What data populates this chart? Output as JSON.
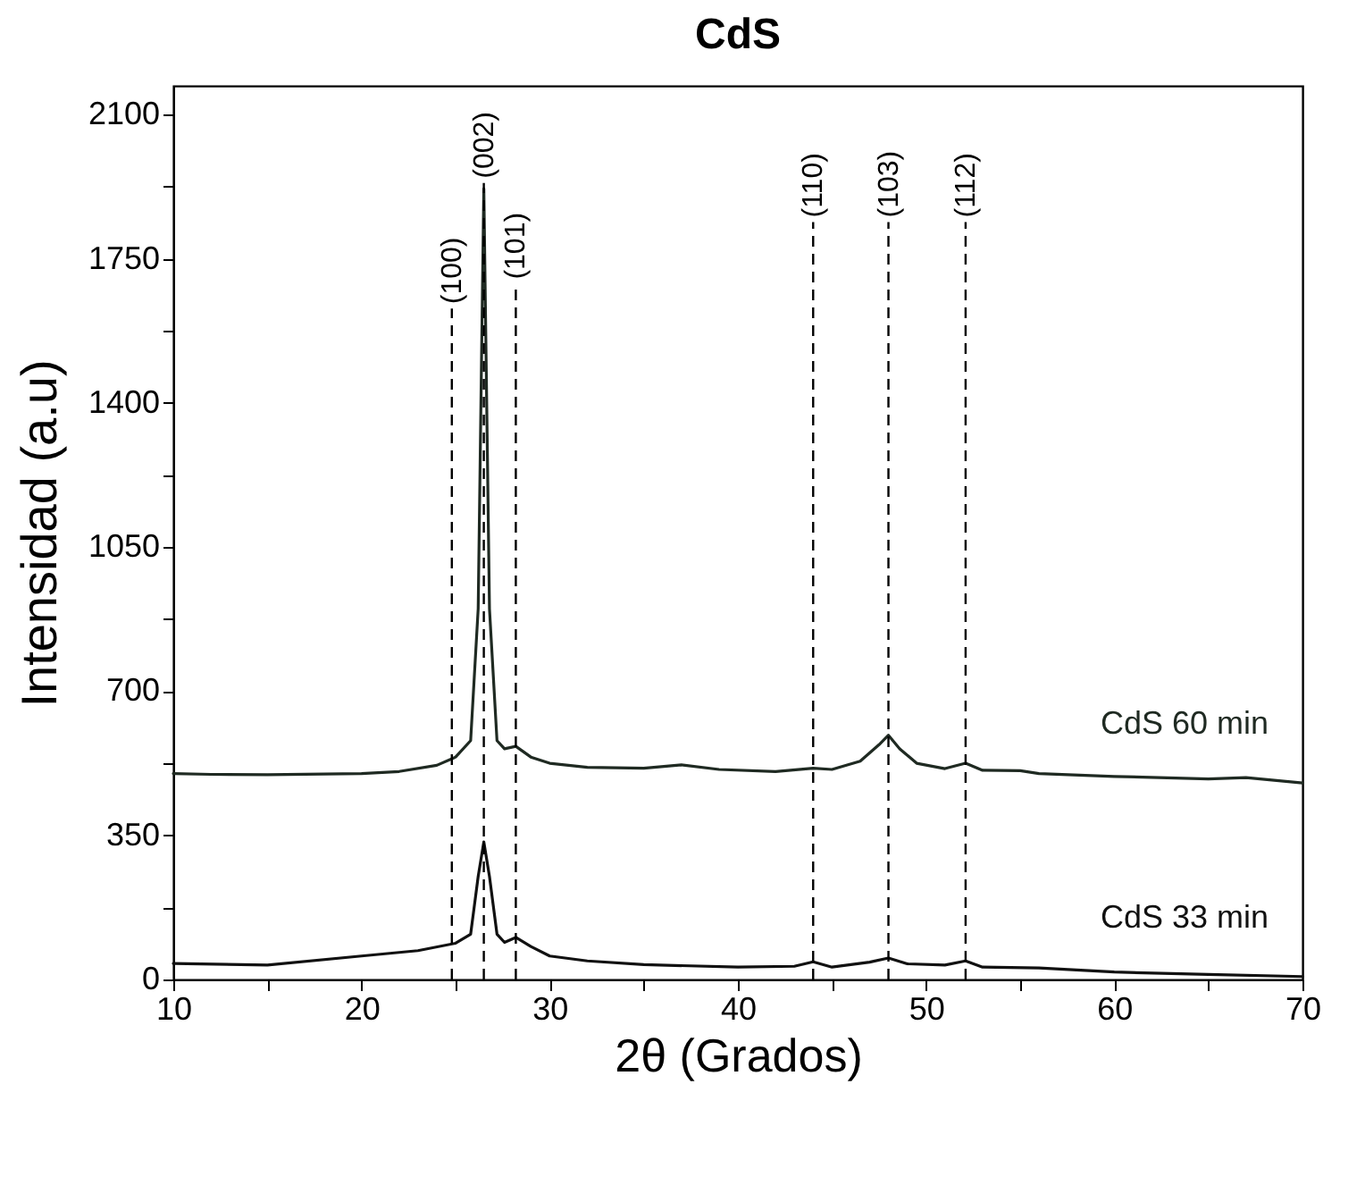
{
  "chart_data": {
    "type": "line",
    "title": "CdS",
    "xlabel": "2θ (Grados)",
    "ylabel": "Intensidad (a.u)",
    "xlim": [
      10,
      70
    ],
    "xticks": [
      10,
      {
        "value": 15,
        "label": null
      },
      20,
      {
        "value": 25,
        "label": null
      },
      30,
      {
        "value": 35,
        "label": null
      },
      40,
      {
        "value": 45,
        "label": null
      },
      50,
      {
        "value": 55,
        "label": null
      },
      60,
      {
        "value": 65,
        "label": null
      },
      70
    ],
    "ylim": [
      0,
      2170
    ],
    "yticks": [
      0,
      {
        "value": 175,
        "label": null
      },
      350,
      {
        "value": 525,
        "label": null
      },
      700,
      {
        "value": 875,
        "label": null
      },
      1050,
      {
        "value": 1225,
        "label": null
      },
      1400,
      {
        "value": 1575,
        "label": null
      },
      1750,
      {
        "value": 1925,
        "label": null
      },
      2100
    ],
    "grid": false,
    "legend": false,
    "marker": "none",
    "line_style": "solid",
    "series": [
      {
        "name": "CdS 60 min",
        "color": "#1f2a22",
        "x": [
          10,
          12,
          15,
          18,
          20,
          22,
          24,
          25,
          25.8,
          26.2,
          26.5,
          26.8,
          27.2,
          27.6,
          28.2,
          29,
          30,
          32,
          35,
          37,
          39,
          42,
          44,
          45,
          46.5,
          47.5,
          48,
          48.6,
          49.5,
          51,
          52.1,
          53,
          55,
          56,
          60,
          65,
          67,
          70
        ],
        "values": [
          500,
          498,
          497,
          499,
          500,
          505,
          520,
          540,
          580,
          900,
          1920,
          900,
          580,
          560,
          566,
          540,
          525,
          515,
          513,
          521,
          510,
          505,
          513,
          510,
          530,
          570,
          593,
          560,
          525,
          512,
          525,
          508,
          507,
          500,
          493,
          487,
          490,
          477
        ]
      },
      {
        "name": "CdS 33 min",
        "color": "#111111",
        "x": [
          10,
          15,
          20,
          23,
          25,
          25.8,
          26.2,
          26.5,
          26.8,
          27.2,
          27.6,
          28.2,
          29,
          30,
          32,
          35,
          40,
          43,
          44,
          45,
          47,
          48,
          49,
          51,
          52.1,
          53,
          56,
          60,
          65,
          70
        ],
        "values": [
          39,
          35,
          57,
          70,
          88,
          110,
          250,
          334,
          250,
          110,
          90,
          102,
          80,
          57,
          45,
          36,
          30,
          32,
          43,
          30,
          42,
          52,
          38,
          35,
          45,
          30,
          28,
          18,
          12,
          7
        ]
      }
    ],
    "ref_lines": [
      {
        "axis": "x",
        "value": 24.8,
        "line_style": "dashed"
      },
      {
        "axis": "x",
        "value": 26.5,
        "line_style": "dashed"
      },
      {
        "axis": "x",
        "value": 28.2,
        "line_style": "dashed"
      },
      {
        "axis": "x",
        "value": 44.0,
        "line_style": "dashed"
      },
      {
        "axis": "x",
        "value": 48.0,
        "line_style": "dashed"
      },
      {
        "axis": "x",
        "value": 52.1,
        "line_style": "dashed"
      }
    ],
    "annotations": [
      {
        "text": "(100)",
        "x": 24.8,
        "y": 1640
      },
      {
        "text": "(002)",
        "x": 26.5,
        "y": 1945
      },
      {
        "text": "(101)",
        "x": 28.2,
        "y": 1700
      },
      {
        "text": "(110)",
        "x": 44.0,
        "y": 1850
      },
      {
        "text": "(103)",
        "x": 48.0,
        "y": 1850
      },
      {
        "text": "(112)",
        "x": 52.1,
        "y": 1850
      }
    ]
  }
}
